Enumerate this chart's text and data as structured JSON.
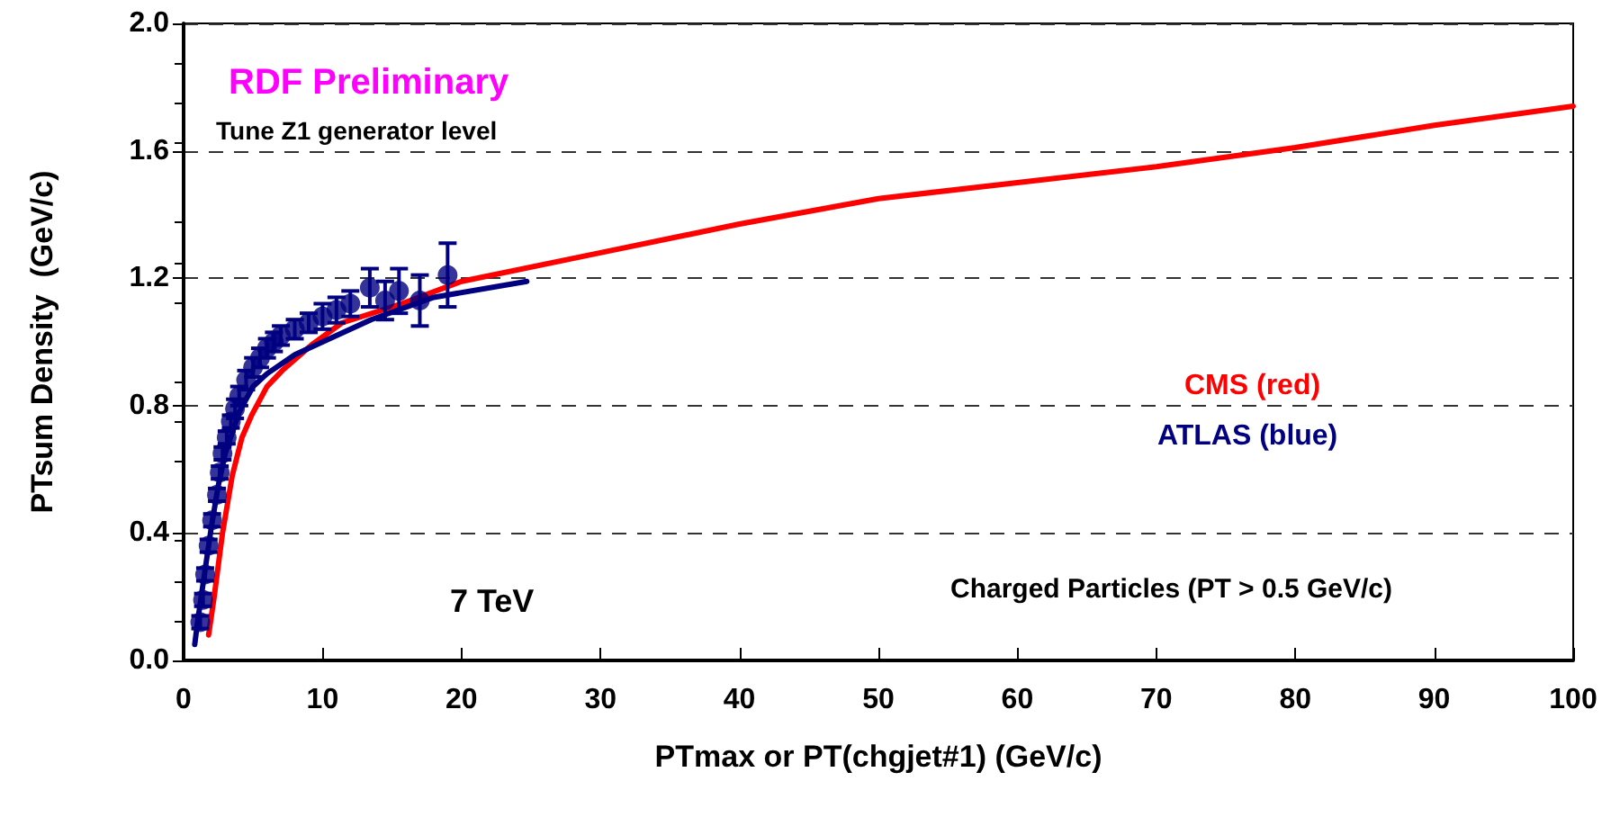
{
  "chart_data": {
    "type": "line",
    "xlabel": "PTmax or PT(chgjet#1) (GeV/c)",
    "ylabel": "PTsum Density  (GeV/c)",
    "xlim": [
      0,
      100
    ],
    "xticks": [
      0,
      10,
      20,
      30,
      40,
      50,
      60,
      70,
      80,
      90,
      100
    ],
    "ylim": [
      0,
      2
    ],
    "yticks": [
      {
        "value": 0,
        "label": "0.0"
      },
      {
        "value": 0.4,
        "label": "0.4"
      },
      {
        "value": 0.8,
        "label": "0.8"
      },
      {
        "value": 1.2,
        "label": "1.2"
      },
      {
        "value": 1.6,
        "label": "1.6"
      },
      {
        "value": 2,
        "label": "2.0"
      }
    ],
    "grid": "y",
    "annotations": [
      "RDF Preliminary",
      "Tune Z1 generator level",
      "7 TeV",
      "CMS (red)",
      "ATLAS (blue)",
      "Charged Particles (PT > 0.5 GeV/c)"
    ],
    "series": [
      {
        "color": "#ff0000",
        "marker": "none",
        "x": [
          1.8,
          2.2,
          2.8,
          3.5,
          4.2,
          4.9,
          6,
          7.1,
          9.2,
          11.4,
          15.7,
          20,
          30,
          40,
          50,
          60,
          70,
          80,
          90,
          100
        ],
        "values": [
          0.08,
          0.2,
          0.4,
          0.58,
          0.7,
          0.77,
          0.86,
          0.91,
          0.99,
          1.06,
          1.12,
          1.19,
          1.28,
          1.37,
          1.45,
          1.5,
          1.55,
          1.61,
          1.68,
          1.74
        ]
      },
      {
        "color": "#000080",
        "marker": "none",
        "x": [
          0.8,
          1,
          1.5,
          2,
          2.5,
          3,
          4,
          5,
          6,
          8,
          10,
          13.5,
          18,
          24.7
        ],
        "values": [
          0.05,
          0.12,
          0.27,
          0.42,
          0.55,
          0.65,
          0.78,
          0.86,
          0.9,
          0.96,
          1.0,
          1.07,
          1.14,
          1.19
        ]
      },
      {
        "type": "scatter",
        "color": "#000080",
        "marker": "circle",
        "x": [
          1.2,
          1.4,
          1.55,
          1.8,
          2.05,
          2.4,
          2.6,
          2.8,
          3.1,
          3.4,
          3.7,
          4,
          4.5,
          5,
          5.5,
          6,
          6.5,
          7,
          8,
          9,
          10,
          11,
          12,
          13.4,
          14.5,
          15.5,
          17,
          19
        ],
        "values": [
          0.12,
          0.19,
          0.27,
          0.36,
          0.44,
          0.52,
          0.59,
          0.65,
          0.7,
          0.75,
          0.79,
          0.83,
          0.88,
          0.92,
          0.95,
          0.98,
          1.0,
          1.02,
          1.04,
          1.06,
          1.08,
          1.1,
          1.12,
          1.17,
          1.13,
          1.16,
          1.13,
          1.21
        ],
        "errors": [
          0.02,
          0.02,
          0.02,
          0.02,
          0.02,
          0.02,
          0.02,
          0.02,
          0.02,
          0.02,
          0.03,
          0.03,
          0.03,
          0.03,
          0.03,
          0.03,
          0.03,
          0.03,
          0.03,
          0.03,
          0.04,
          0.04,
          0.04,
          0.06,
          0.06,
          0.07,
          0.08,
          0.1
        ]
      }
    ]
  }
}
